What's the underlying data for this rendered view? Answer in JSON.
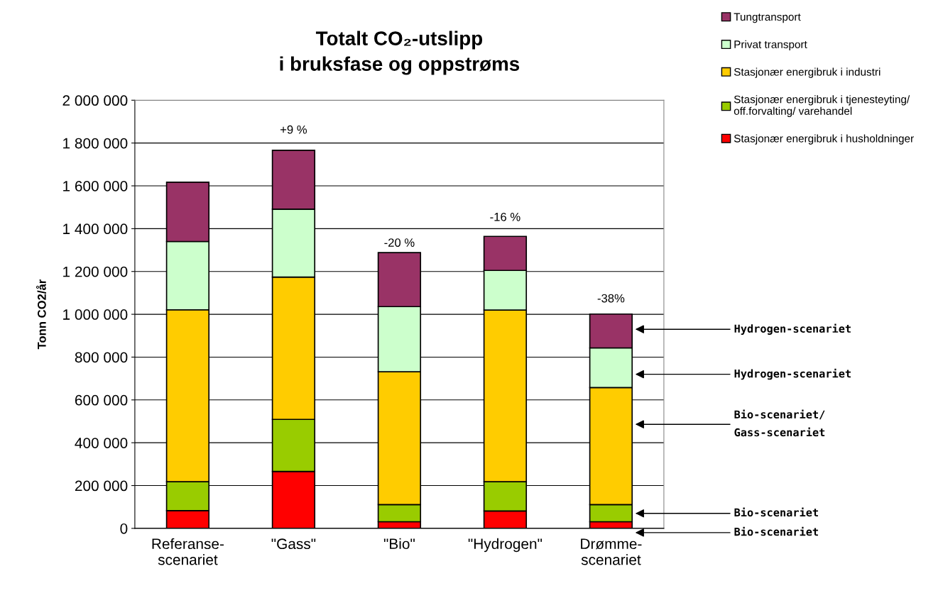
{
  "chart_data": {
    "type": "bar",
    "stacked": true,
    "title": "Totalt CO₂-utslipp\ni bruksfase og oppstrøms",
    "ylabel": "Tonn CO2/år",
    "categories": [
      "Referanse-\nscenariet",
      "\"Gass\"",
      "\"Bio\"",
      "\"Hydrogen\"",
      "Drømme-\nscenariet"
    ],
    "series": [
      {
        "name": "Stasjonær energibruk i husholdninger",
        "color": "#ff0000",
        "values": [
          83000,
          266000,
          31000,
          81000,
          31000
        ]
      },
      {
        "name": "Stasjonær energibruk i tjenesteyting/\noff.forvalting/ varehandel",
        "color": "#99cc00",
        "values": [
          135000,
          243000,
          80000,
          137000,
          80000
        ]
      },
      {
        "name": "Stasjonær energibruk i industri",
        "color": "#ffcc00",
        "values": [
          803000,
          665000,
          621000,
          802000,
          547000
        ]
      },
      {
        "name": "Privat transport",
        "color": "#ccffcc",
        "values": [
          319000,
          317000,
          304000,
          185000,
          185000
        ]
      },
      {
        "name": "Tungtransport",
        "color": "#993366",
        "values": [
          277000,
          275000,
          252000,
          159000,
          158000
        ]
      }
    ],
    "ylim": [
      0,
      2000000
    ],
    "yticks": [
      {
        "value": 0,
        "label": "0"
      },
      {
        "value": 200000,
        "label": "200 000"
      },
      {
        "value": 400000,
        "label": "400 000"
      },
      {
        "value": 600000,
        "label": "600 000"
      },
      {
        "value": 800000,
        "label": "800 000"
      },
      {
        "value": 1000000,
        "label": "1 000 000"
      },
      {
        "value": 1200000,
        "label": "1 200 000"
      },
      {
        "value": 1400000,
        "label": "1 400 000"
      },
      {
        "value": 1600000,
        "label": "1 600 000"
      },
      {
        "value": 1800000,
        "label": "1 800 000"
      },
      {
        "value": 2000000,
        "label": "2 000 000"
      }
    ],
    "grid": "y",
    "legend": "top right",
    "annotations": [
      "+9 %",
      "-20 %",
      "-16 %",
      "-38%",
      "Hydrogen-scenariet",
      "Hydrogen-scenariet",
      "Bio-scenariet/\nGass-scenariet",
      "Bio-scenariet",
      "Bio-scenariet"
    ]
  }
}
